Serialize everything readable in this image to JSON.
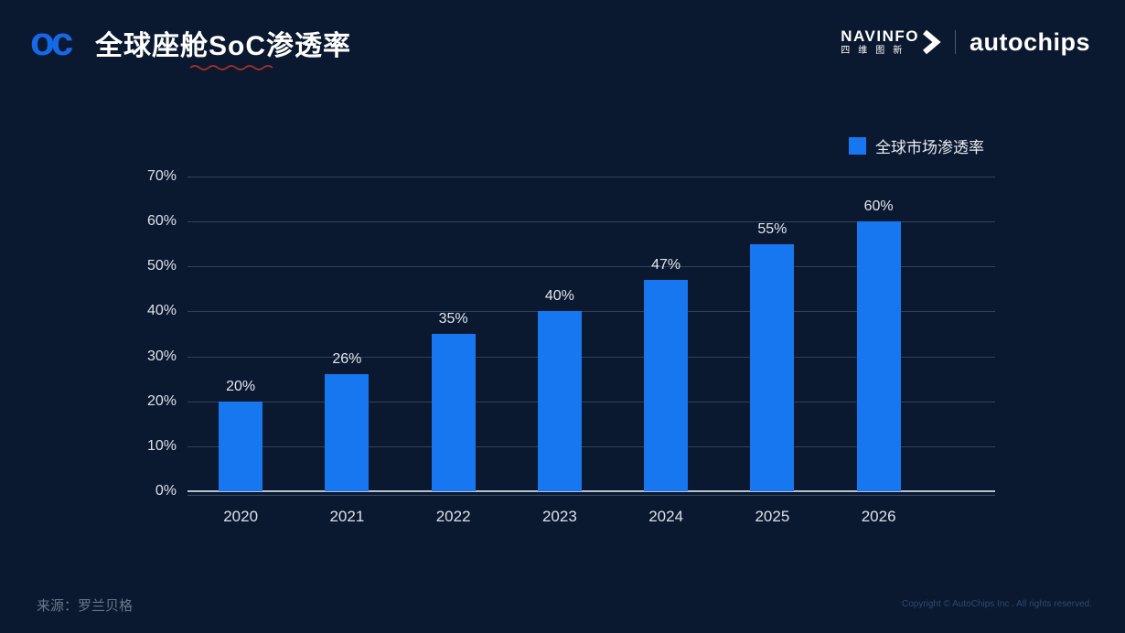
{
  "slide": {
    "logo_text": "oc",
    "title": "全球座舱SoC渗透率",
    "brand": {
      "navinfo_en": "NAVINFO",
      "navinfo_cn": "四维图新",
      "autochips": "autochips"
    },
    "legend": {
      "label": "全球市场渗透率"
    },
    "source": "来源：罗兰贝格",
    "copyright": "Copyright © AutoChips Inc . All rights reserved."
  },
  "colors": {
    "background": "#0a1830",
    "bar": "#1777f0",
    "logo_blue": "#1569e8"
  },
  "chart_data": {
    "type": "bar",
    "title": "全球座舱SoC渗透率",
    "categories": [
      "2020",
      "2021",
      "2022",
      "2023",
      "2024",
      "2025",
      "2026"
    ],
    "series": [
      {
        "name": "全球市场渗透率",
        "values": [
          20,
          26,
          35,
          40,
          47,
          55,
          60
        ]
      }
    ],
    "unit": "%",
    "label_format": "{value}%",
    "xlabel": "",
    "ylabel": "",
    "ylim": [
      0,
      70
    ],
    "ytick_step": 10,
    "ytick_labels": [
      "0%",
      "10%",
      "20%",
      "30%",
      "40%",
      "50%",
      "60%",
      "70%"
    ],
    "grid": true,
    "legend_position": "top-right",
    "bar_color": "#1777f0"
  }
}
